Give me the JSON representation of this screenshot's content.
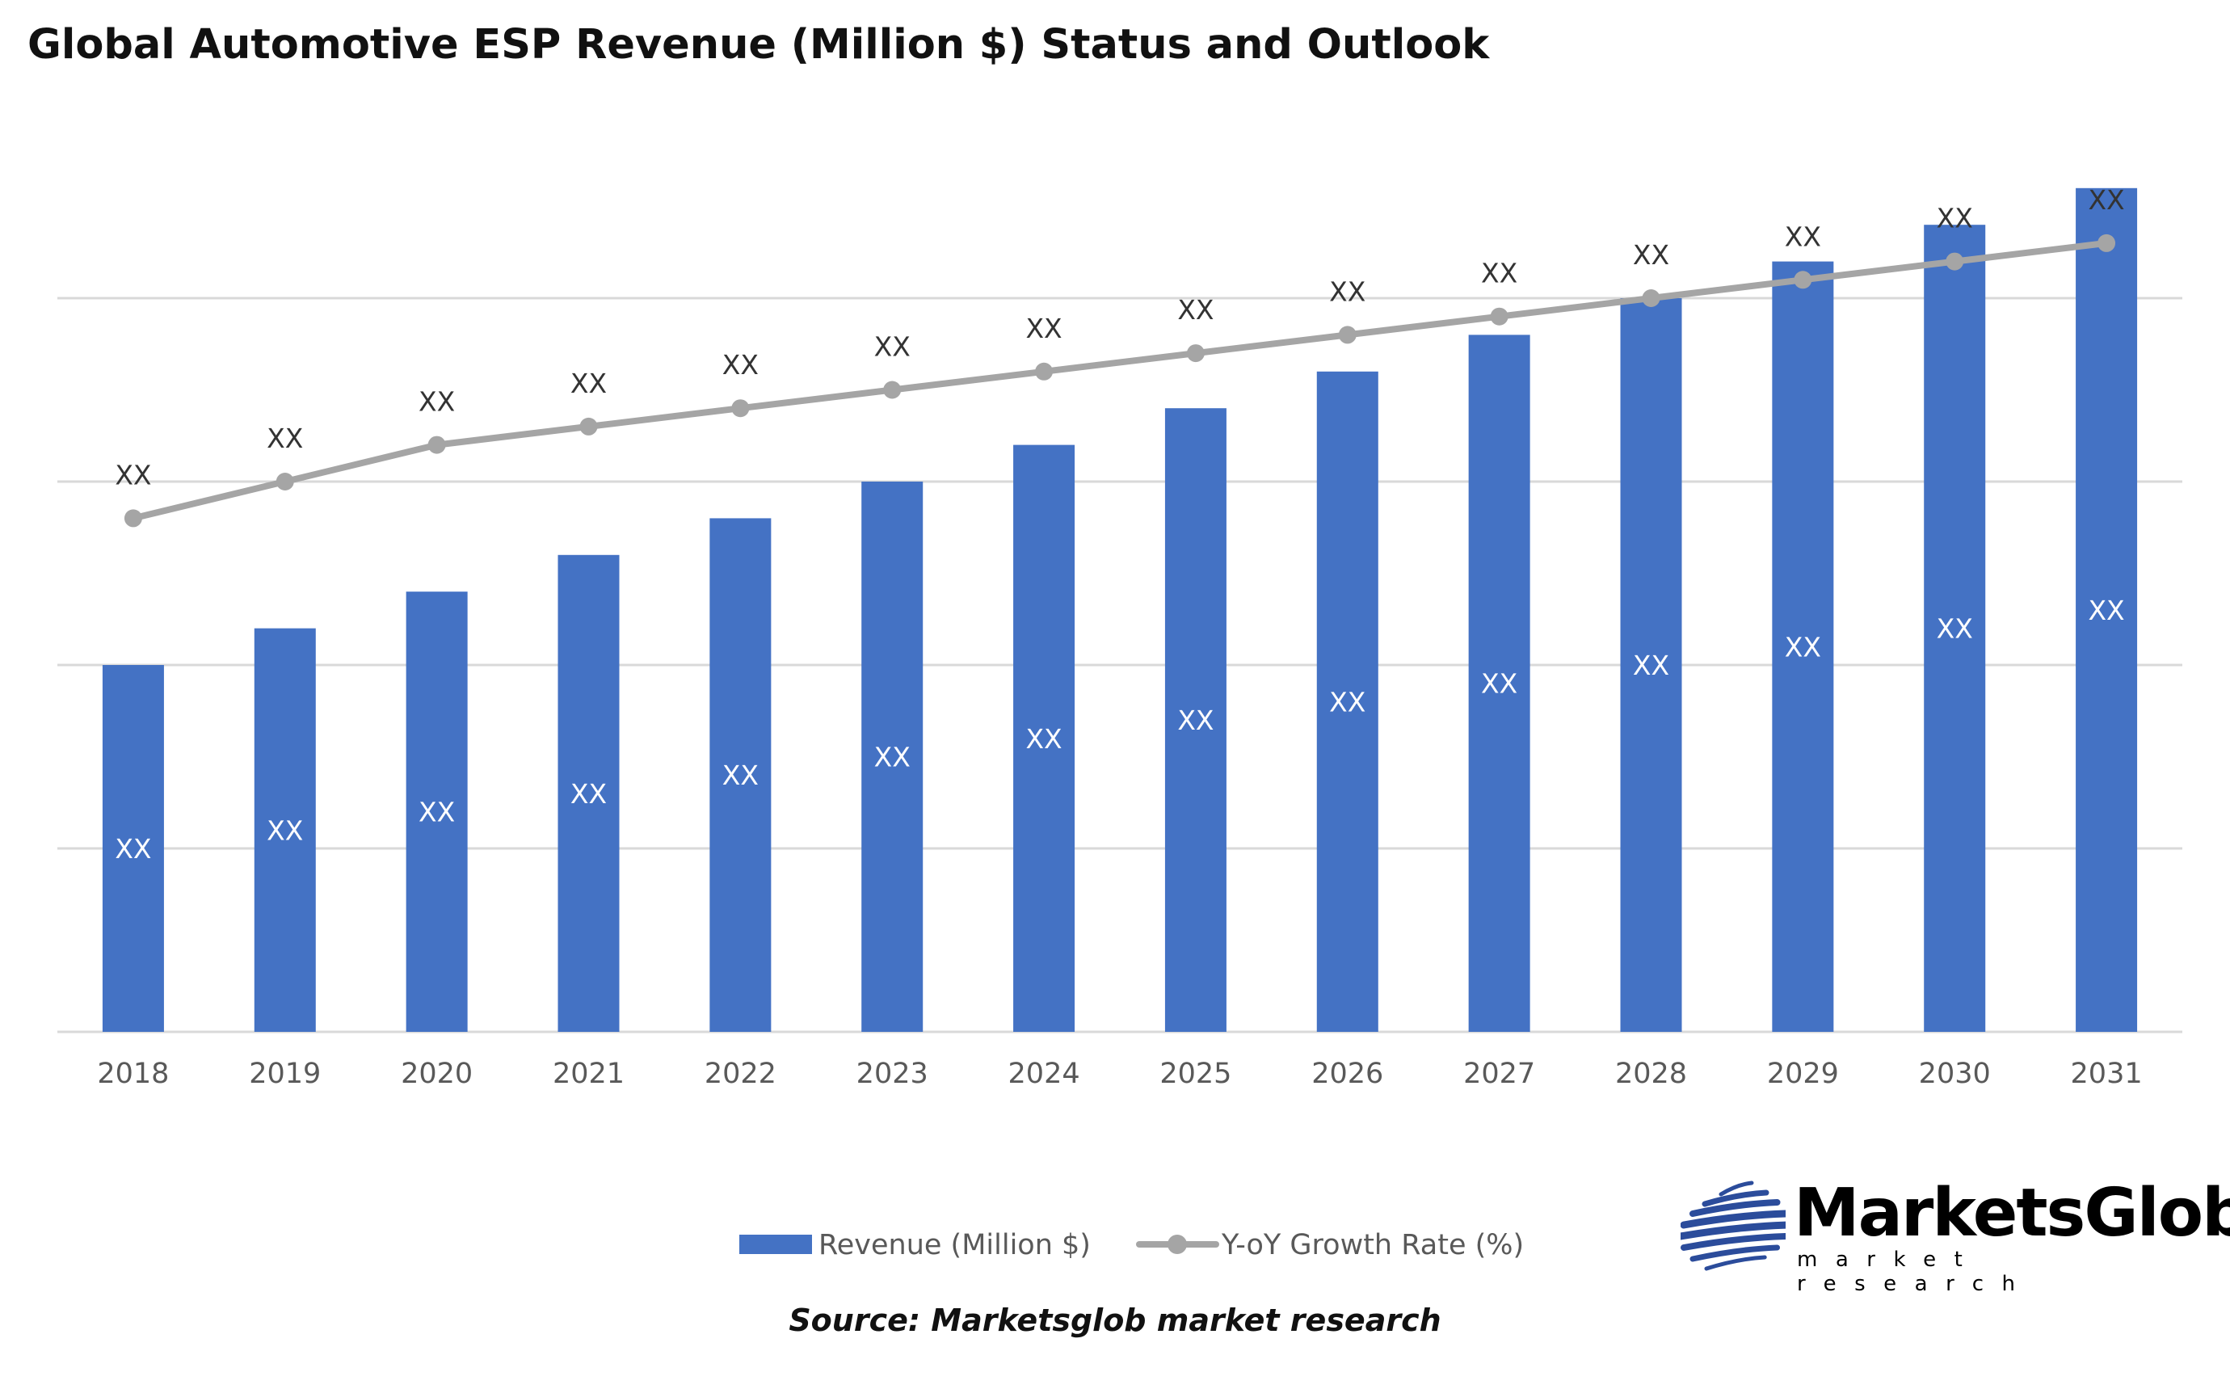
{
  "chart_data": {
    "type": "bar",
    "title": "Global Automotive ESP Revenue (Million $) Status and Outlook",
    "categories": [
      "2018",
      "2019",
      "2020",
      "2021",
      "2022",
      "2023",
      "2024",
      "2025",
      "2026",
      "2027",
      "2028",
      "2029",
      "2030",
      "2031"
    ],
    "series": [
      {
        "name": "Revenue (Million $)",
        "type": "bar",
        "color": "#4472C4",
        "values": [
          2.0,
          2.2,
          2.4,
          2.6,
          2.8,
          3.0,
          3.2,
          3.4,
          3.6,
          3.8,
          4.0,
          4.2,
          4.4,
          4.6
        ],
        "labels": [
          "XX",
          "XX",
          "XX",
          "XX",
          "XX",
          "XX",
          "XX",
          "XX",
          "XX",
          "XX",
          "XX",
          "XX",
          "XX",
          "XX"
        ]
      },
      {
        "name": "Y-oY Growth Rate (%)",
        "type": "line",
        "color": "#A5A5A5",
        "values": [
          2.8,
          3.0,
          3.2,
          3.3,
          3.4,
          3.5,
          3.6,
          3.7,
          3.8,
          3.9,
          4.0,
          4.1,
          4.2,
          4.3
        ],
        "labels": [
          "XX",
          "XX",
          "XX",
          "XX",
          "XX",
          "XX",
          "XX",
          "XX",
          "XX",
          "XX",
          "XX",
          "XX",
          "XX",
          "XX"
        ]
      }
    ],
    "ylim": [
      0,
      5
    ],
    "gridlines": [
      0,
      1,
      2,
      3,
      4
    ],
    "grid": true,
    "y_tick_labels_shown": false,
    "legend_placement": "bottom"
  },
  "source": "Source: Marketsglob market research",
  "logo": {
    "brand": "MarketsGlob",
    "tagline": "market research",
    "color": "#2B4C9B"
  }
}
